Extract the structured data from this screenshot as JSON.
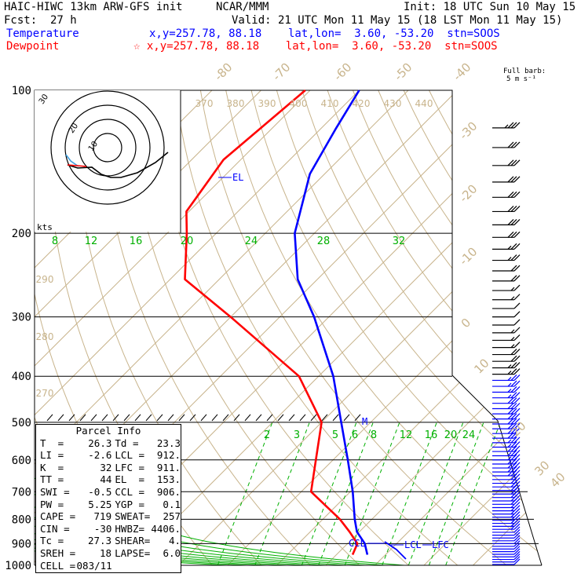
{
  "header": {
    "model": "HAIC-HIWC 13km ARW-GFS init",
    "org": "NCAR/MMM",
    "init": "Init: 18 UTC Sun 10 May 15",
    "fcst_label": "Fcst:",
    "fcst_value": "27 h",
    "valid": "Valid: 21 UTC Mon 11 May 15 (18 LST Mon 11 May 15)",
    "temperature_label": "Temperature",
    "dewpoint_label": "Dewpoint",
    "temp_loc": "x,y=257.78, 88.18    lat,lon=  3.60, -53.20  stn=SOOS",
    "dew_loc": "☆ x,y=257.78, 88.18    lat,lon=  3.60, -53.20  stn=SOOS"
  },
  "colors": {
    "temperature": "#0000ff",
    "dewpoint": "#ff0000",
    "isotherm": "#c8b48c",
    "mixing_ratio": "#00b000",
    "grid": "#000000",
    "hodograph_obs": "#40a0e0"
  },
  "wind_barb_legend": {
    "line1": "Full barb:",
    "line2": "5 m s⁻¹"
  },
  "parcel": {
    "title": "Parcel Info",
    "rows": [
      {
        "l1": "T  =",
        "v1": "26.3",
        "l2": "Td =",
        "v2": "23.3"
      },
      {
        "l1": "LI =",
        "v1": "-2.6",
        "l2": "LCL =",
        "v2": "912."
      },
      {
        "l1": "K  =",
        "v1": "32",
        "l2": "LFC =",
        "v2": "911."
      },
      {
        "l1": "TT =",
        "v1": "44",
        "l2": "EL  =",
        "v2": "153."
      },
      {
        "l1": "SWI =",
        "v1": "-0.5",
        "l2": "CCL =",
        "v2": "906."
      },
      {
        "l1": "PW =",
        "v1": "5.25",
        "l2": "YGP =",
        "v2": "0.1"
      },
      {
        "l1": "CAPE =",
        "v1": "719",
        "l2": "SWEAT=",
        "v2": "257"
      },
      {
        "l1": "CIN =",
        "v1": "-30",
        "l2": "HWBZ=",
        "v2": "4406."
      },
      {
        "l1": "Tc =",
        "v1": "27.3",
        "l2": "SHEAR=",
        "v2": "4."
      },
      {
        "l1": "SREH =",
        "v1": "18",
        "l2": "LAPSE=",
        "v2": "6.0"
      },
      {
        "l1": "CELL =",
        "v1": "083/11",
        "l2": "",
        "v2": ""
      }
    ]
  },
  "chart_data": {
    "type": "line",
    "title": "",
    "pressure_ticks": [
      "100",
      "200",
      "300",
      "400",
      "500",
      "600",
      "700",
      "800",
      "900",
      "1000"
    ],
    "pressure_range": [
      1000,
      100
    ],
    "isotherm_labels": [
      "-80",
      "-70",
      "-60",
      "-50",
      "-40",
      "-30",
      "-20",
      "-10",
      "0",
      "10",
      "20",
      "30",
      "40"
    ],
    "isotherm_values": [
      -80,
      -70,
      -60,
      -50,
      -40,
      -30,
      -20,
      -10,
      0,
      10,
      20,
      30,
      40
    ],
    "theta_labels_top": [
      "370",
      "380",
      "390",
      "400",
      "410",
      "420",
      "430",
      "440"
    ],
    "theta_labels_left": [
      "290",
      "280",
      "270"
    ],
    "mixing_ratio_labels_upper": [
      "8",
      "12",
      "16",
      "20",
      "24",
      "28",
      "32"
    ],
    "mixing_ratio_labels_lower": [
      "2",
      "3",
      "5",
      "6",
      "8",
      "12",
      "16",
      "20",
      "24"
    ],
    "annotations": {
      "el": "EL",
      "ccl": "CCL",
      "lcl": "LCL",
      "lfc": "LFC",
      "m": "M",
      "kts": "kts"
    },
    "hodograph": {
      "ring_labels": [
        "30",
        "20",
        "10"
      ]
    },
    "series": [
      {
        "name": "Temperature",
        "points": [
          {
            "p": 100,
            "t": -70.0
          },
          {
            "p": 120,
            "t": -67.0
          },
          {
            "p": 150,
            "t": -63.0
          },
          {
            "p": 200,
            "t": -54.0
          },
          {
            "p": 250,
            "t": -44.0
          },
          {
            "p": 300,
            "t": -33.0
          },
          {
            "p": 400,
            "t": -17.0
          },
          {
            "p": 500,
            "t": -6.0
          },
          {
            "p": 600,
            "t": 3.0
          },
          {
            "p": 700,
            "t": 10.5
          },
          {
            "p": 800,
            "t": 16.5
          },
          {
            "p": 850,
            "t": 19.5
          },
          {
            "p": 900,
            "t": 23.5
          },
          {
            "p": 950,
            "t": 26.3
          }
        ]
      },
      {
        "name": "Dewpoint",
        "points": [
          {
            "p": 100,
            "t": -81.0
          },
          {
            "p": 140,
            "t": -83.5
          },
          {
            "p": 180,
            "t": -80.5
          },
          {
            "p": 200,
            "t": -76.0
          },
          {
            "p": 250,
            "t": -67.0
          },
          {
            "p": 300,
            "t": -50.0
          },
          {
            "p": 400,
            "t": -24.0
          },
          {
            "p": 500,
            "t": -10.0
          },
          {
            "p": 600,
            "t": -3.5
          },
          {
            "p": 700,
            "t": 2.0
          },
          {
            "p": 800,
            "t": 13.5
          },
          {
            "p": 850,
            "t": 18.0
          },
          {
            "p": 900,
            "t": 22.0
          },
          {
            "p": 950,
            "t": 23.3
          }
        ]
      }
    ],
    "wind_profile": [
      {
        "p": 100,
        "speed_ms": 17.5
      },
      {
        "p": 150,
        "speed_ms": 15
      },
      {
        "p": 200,
        "speed_ms": 15
      },
      {
        "p": 250,
        "speed_ms": 10
      },
      {
        "p": 300,
        "speed_ms": 5
      },
      {
        "p": 400,
        "speed_ms": 12.5
      },
      {
        "p": 500,
        "speed_ms": 15
      },
      {
        "p": 600,
        "speed_ms": 12.5
      },
      {
        "p": 700,
        "speed_ms": 10
      },
      {
        "p": 800,
        "speed_ms": 7.5
      },
      {
        "p": 900,
        "speed_ms": 5
      },
      {
        "p": 950,
        "speed_ms": 5
      }
    ]
  }
}
